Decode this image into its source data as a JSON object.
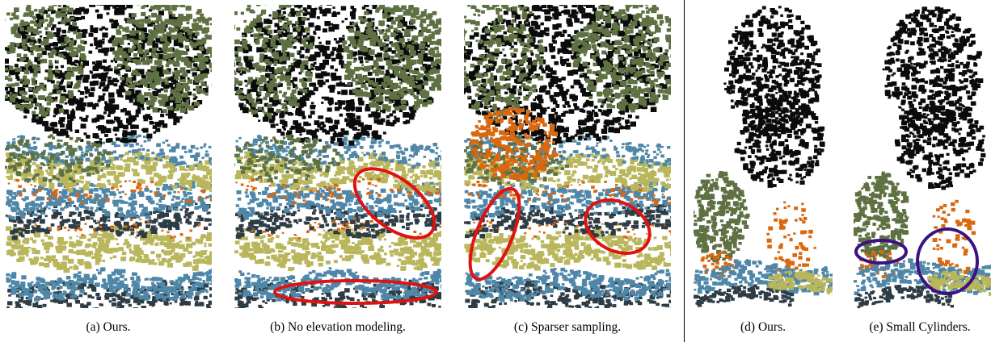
{
  "figure": {
    "panels": [
      {
        "id": "a",
        "caption": "(a) Ours."
      },
      {
        "id": "b",
        "caption": "(b) No elevation modeling."
      },
      {
        "id": "c",
        "caption": "(c) Sparser sampling."
      },
      {
        "id": "d",
        "caption": "(d) Ours."
      },
      {
        "id": "e",
        "caption": "(e) Small Cylinders."
      }
    ],
    "colors": {
      "canopy_dark": "#0b0b0b",
      "foliage_green": "#5e7142",
      "low_vegetation_yellow": "#b9b65c",
      "ground_blue": "#4f87a8",
      "shrub_orange": "#d9680f",
      "dark_slate": "#2d3c45",
      "highlight_red": "#e01212",
      "highlight_purple": "#3c1283"
    }
  }
}
